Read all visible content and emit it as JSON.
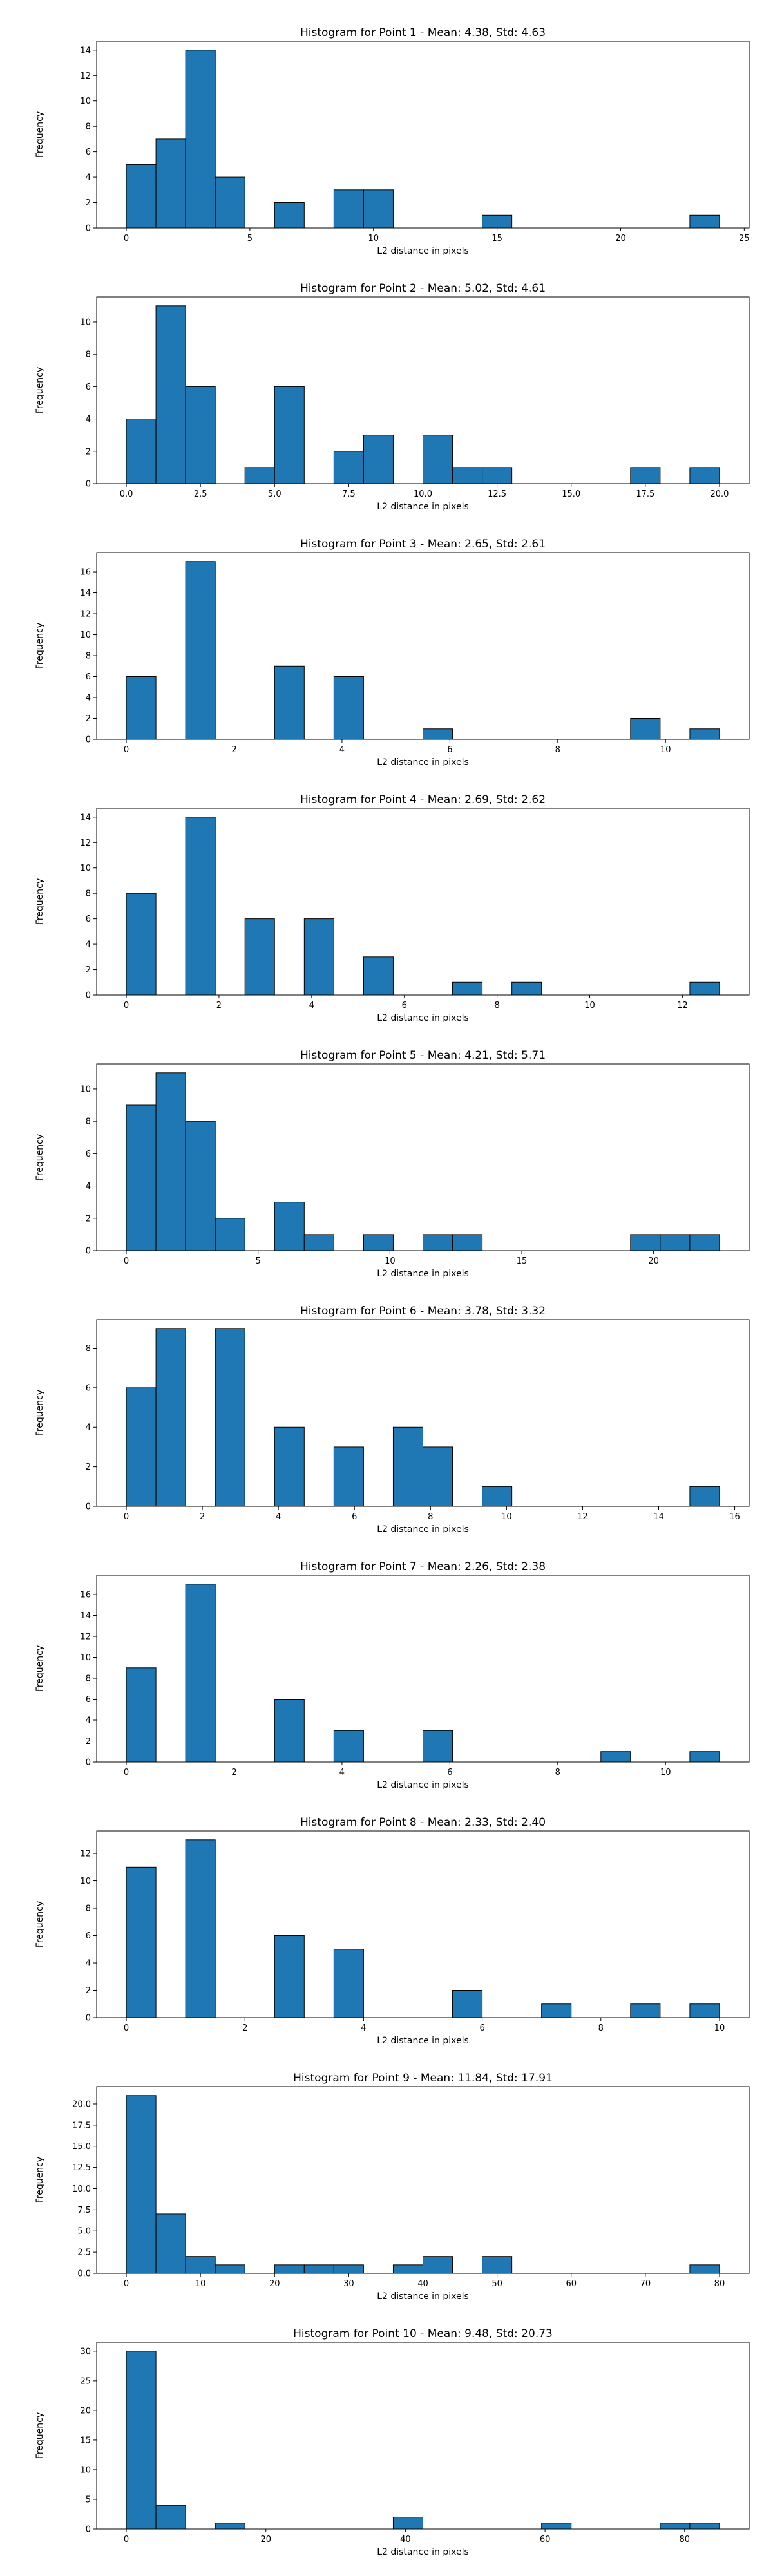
{
  "bar_color": "#1f77b4",
  "edge_color": "#000000",
  "chart_data": [
    {
      "type": "bar",
      "title": "Histogram for Point 1 - Mean: 4.38, Std: 4.63",
      "xlabel": "L2 distance in pixels",
      "ylabel": "Frequency",
      "xlim": [
        -1.2,
        25.2
      ],
      "ylim": [
        0,
        14.7
      ],
      "xticks": [
        0,
        5,
        10,
        15,
        20,
        25
      ],
      "xtick_labels": [
        "0",
        "5",
        "10",
        "15",
        "20",
        "25"
      ],
      "yticks": [
        0,
        2,
        4,
        6,
        8,
        10,
        12,
        14
      ],
      "ytick_labels": [
        "0",
        "2",
        "4",
        "6",
        "8",
        "10",
        "12",
        "14"
      ],
      "grid": false,
      "bins": [
        {
          "x0": 0.0,
          "x1": 1.2,
          "value": 5
        },
        {
          "x0": 1.2,
          "x1": 2.4,
          "value": 7
        },
        {
          "x0": 2.4,
          "x1": 3.6,
          "value": 14
        },
        {
          "x0": 3.6,
          "x1": 4.8,
          "value": 4
        },
        {
          "x0": 6.0,
          "x1": 7.2,
          "value": 2
        },
        {
          "x0": 8.4,
          "x1": 9.6,
          "value": 3
        },
        {
          "x0": 9.6,
          "x1": 10.8,
          "value": 3
        },
        {
          "x0": 14.4,
          "x1": 15.6,
          "value": 1
        },
        {
          "x0": 22.8,
          "x1": 24.0,
          "value": 1
        }
      ]
    },
    {
      "type": "bar",
      "title": "Histogram for Point 2 - Mean: 5.02, Std: 4.61",
      "xlabel": "L2 distance in pixels",
      "ylabel": "Frequency",
      "xlim": [
        -1.0,
        21.0
      ],
      "ylim": [
        0,
        11.55
      ],
      "xticks": [
        0,
        2.5,
        5,
        7.5,
        10,
        12.5,
        15,
        17.5,
        20
      ],
      "xtick_labels": [
        "0.0",
        "2.5",
        "5.0",
        "7.5",
        "10.0",
        "12.5",
        "15.0",
        "17.5",
        "20.0"
      ],
      "yticks": [
        0,
        2,
        4,
        6,
        8,
        10
      ],
      "ytick_labels": [
        "0",
        "2",
        "4",
        "6",
        "8",
        "10"
      ],
      "grid": false,
      "bins": [
        {
          "x0": 0.0,
          "x1": 1.0,
          "value": 4
        },
        {
          "x0": 1.0,
          "x1": 2.0,
          "value": 11
        },
        {
          "x0": 2.0,
          "x1": 3.0,
          "value": 6
        },
        {
          "x0": 4.0,
          "x1": 5.0,
          "value": 1
        },
        {
          "x0": 5.0,
          "x1": 6.0,
          "value": 6
        },
        {
          "x0": 7.0,
          "x1": 8.0,
          "value": 2
        },
        {
          "x0": 8.0,
          "x1": 9.0,
          "value": 3
        },
        {
          "x0": 10.0,
          "x1": 11.0,
          "value": 3
        },
        {
          "x0": 11.0,
          "x1": 12.0,
          "value": 1
        },
        {
          "x0": 12.0,
          "x1": 13.0,
          "value": 1
        },
        {
          "x0": 17.0,
          "x1": 18.0,
          "value": 1
        },
        {
          "x0": 19.0,
          "x1": 20.0,
          "value": 1
        }
      ]
    },
    {
      "type": "bar",
      "title": "Histogram for Point 3 - Mean: 2.65, Std: 2.61",
      "xlabel": "L2 distance in pixels",
      "ylabel": "Frequency",
      "xlim": [
        -0.55,
        11.55
      ],
      "ylim": [
        0,
        17.85
      ],
      "xticks": [
        0,
        2,
        4,
        6,
        8,
        10
      ],
      "xtick_labels": [
        "0",
        "2",
        "4",
        "6",
        "8",
        "10"
      ],
      "yticks": [
        0,
        2,
        4,
        6,
        8,
        10,
        12,
        14,
        16
      ],
      "ytick_labels": [
        "0",
        "2",
        "4",
        "6",
        "8",
        "10",
        "12",
        "14",
        "16"
      ],
      "grid": false,
      "bins": [
        {
          "x0": 0.0,
          "x1": 0.55,
          "value": 6
        },
        {
          "x0": 1.1,
          "x1": 1.65,
          "value": 17
        },
        {
          "x0": 2.75,
          "x1": 3.3,
          "value": 7
        },
        {
          "x0": 3.85,
          "x1": 4.4,
          "value": 6
        },
        {
          "x0": 5.5,
          "x1": 6.05,
          "value": 1
        },
        {
          "x0": 9.35,
          "x1": 9.9,
          "value": 2
        },
        {
          "x0": 10.45,
          "x1": 11.0,
          "value": 1
        }
      ]
    },
    {
      "type": "bar",
      "title": "Histogram for Point 4 - Mean: 2.69, Std: 2.62",
      "xlabel": "L2 distance in pixels",
      "ylabel": "Frequency",
      "xlim": [
        -0.64,
        13.44
      ],
      "ylim": [
        0,
        14.7
      ],
      "xticks": [
        0,
        2,
        4,
        6,
        8,
        10,
        12
      ],
      "xtick_labels": [
        "0",
        "2",
        "4",
        "6",
        "8",
        "10",
        "12"
      ],
      "yticks": [
        0,
        2,
        4,
        6,
        8,
        10,
        12,
        14
      ],
      "ytick_labels": [
        "0",
        "2",
        "4",
        "6",
        "8",
        "10",
        "12",
        "14"
      ],
      "grid": false,
      "bins": [
        {
          "x0": 0.0,
          "x1": 0.64,
          "value": 8
        },
        {
          "x0": 1.28,
          "x1": 1.92,
          "value": 14
        },
        {
          "x0": 2.56,
          "x1": 3.2,
          "value": 6
        },
        {
          "x0": 3.84,
          "x1": 4.48,
          "value": 6
        },
        {
          "x0": 5.12,
          "x1": 5.76,
          "value": 3
        },
        {
          "x0": 7.04,
          "x1": 7.68,
          "value": 1
        },
        {
          "x0": 8.32,
          "x1": 8.96,
          "value": 1
        },
        {
          "x0": 12.16,
          "x1": 12.8,
          "value": 1
        }
      ]
    },
    {
      "type": "bar",
      "title": "Histogram for Point 5 - Mean: 4.21, Std: 5.71",
      "xlabel": "L2 distance in pixels",
      "ylabel": "Frequency",
      "xlim": [
        -1.125,
        23.625
      ],
      "ylim": [
        0,
        11.55
      ],
      "xticks": [
        0,
        5,
        10,
        15,
        20
      ],
      "xtick_labels": [
        "0",
        "5",
        "10",
        "15",
        "20"
      ],
      "yticks": [
        0,
        2,
        4,
        6,
        8,
        10
      ],
      "ytick_labels": [
        "0",
        "2",
        "4",
        "6",
        "8",
        "10"
      ],
      "grid": false,
      "bins": [
        {
          "x0": 0.0,
          "x1": 1.125,
          "value": 9
        },
        {
          "x0": 1.125,
          "x1": 2.25,
          "value": 11
        },
        {
          "x0": 2.25,
          "x1": 3.375,
          "value": 8
        },
        {
          "x0": 3.375,
          "x1": 4.5,
          "value": 2
        },
        {
          "x0": 5.625,
          "x1": 6.75,
          "value": 3
        },
        {
          "x0": 6.75,
          "x1": 7.875,
          "value": 1
        },
        {
          "x0": 9.0,
          "x1": 10.125,
          "value": 1
        },
        {
          "x0": 11.25,
          "x1": 12.375,
          "value": 1
        },
        {
          "x0": 12.375,
          "x1": 13.5,
          "value": 1
        },
        {
          "x0": 19.125,
          "x1": 20.25,
          "value": 1
        },
        {
          "x0": 20.25,
          "x1": 21.375,
          "value": 1
        },
        {
          "x0": 21.375,
          "x1": 22.5,
          "value": 1
        }
      ]
    },
    {
      "type": "bar",
      "title": "Histogram for Point 6 - Mean: 3.78, Std: 3.32",
      "xlabel": "L2 distance in pixels",
      "ylabel": "Frequency",
      "xlim": [
        -0.78,
        16.38
      ],
      "ylim": [
        0,
        9.45
      ],
      "xticks": [
        0,
        2,
        4,
        6,
        8,
        10,
        12,
        14,
        16
      ],
      "xtick_labels": [
        "0",
        "2",
        "4",
        "6",
        "8",
        "10",
        "12",
        "14",
        "16"
      ],
      "yticks": [
        0,
        2,
        4,
        6,
        8
      ],
      "ytick_labels": [
        "0",
        "2",
        "4",
        "6",
        "8"
      ],
      "grid": false,
      "bins": [
        {
          "x0": 0.0,
          "x1": 0.78,
          "value": 6
        },
        {
          "x0": 0.78,
          "x1": 1.56,
          "value": 9
        },
        {
          "x0": 2.34,
          "x1": 3.12,
          "value": 9
        },
        {
          "x0": 3.9,
          "x1": 4.68,
          "value": 4
        },
        {
          "x0": 5.46,
          "x1": 6.24,
          "value": 3
        },
        {
          "x0": 7.02,
          "x1": 7.8,
          "value": 4
        },
        {
          "x0": 7.8,
          "x1": 8.58,
          "value": 3
        },
        {
          "x0": 9.36,
          "x1": 10.14,
          "value": 1
        },
        {
          "x0": 14.82,
          "x1": 15.6,
          "value": 1
        }
      ]
    },
    {
      "type": "bar",
      "title": "Histogram for Point 7 - Mean: 2.26, Std: 2.38",
      "xlabel": "L2 distance in pixels",
      "ylabel": "Frequency",
      "xlim": [
        -0.55,
        11.55
      ],
      "ylim": [
        0,
        17.85
      ],
      "xticks": [
        0,
        2,
        4,
        6,
        8,
        10
      ],
      "xtick_labels": [
        "0",
        "2",
        "4",
        "6",
        "8",
        "10"
      ],
      "yticks": [
        0,
        2,
        4,
        6,
        8,
        10,
        12,
        14,
        16
      ],
      "ytick_labels": [
        "0",
        "2",
        "4",
        "6",
        "8",
        "10",
        "12",
        "14",
        "16"
      ],
      "grid": false,
      "bins": [
        {
          "x0": 0.0,
          "x1": 0.55,
          "value": 9
        },
        {
          "x0": 1.1,
          "x1": 1.65,
          "value": 17
        },
        {
          "x0": 2.75,
          "x1": 3.3,
          "value": 6
        },
        {
          "x0": 3.85,
          "x1": 4.4,
          "value": 3
        },
        {
          "x0": 5.5,
          "x1": 6.05,
          "value": 3
        },
        {
          "x0": 8.8,
          "x1": 9.35,
          "value": 1
        },
        {
          "x0": 10.45,
          "x1": 11.0,
          "value": 1
        }
      ]
    },
    {
      "type": "bar",
      "title": "Histogram for Point 8 - Mean: 2.33, Std: 2.40",
      "xlabel": "L2 distance in pixels",
      "ylabel": "Frequency",
      "xlim": [
        -0.5,
        10.5
      ],
      "ylim": [
        0,
        13.65
      ],
      "xticks": [
        0,
        2,
        4,
        6,
        8,
        10
      ],
      "xtick_labels": [
        "0",
        "2",
        "4",
        "6",
        "8",
        "10"
      ],
      "yticks": [
        0,
        2,
        4,
        6,
        8,
        10,
        12
      ],
      "ytick_labels": [
        "0",
        "2",
        "4",
        "6",
        "8",
        "10",
        "12"
      ],
      "grid": false,
      "bins": [
        {
          "x0": 0.0,
          "x1": 0.5,
          "value": 11
        },
        {
          "x0": 1.0,
          "x1": 1.5,
          "value": 13
        },
        {
          "x0": 2.5,
          "x1": 3.0,
          "value": 6
        },
        {
          "x0": 3.5,
          "x1": 4.0,
          "value": 5
        },
        {
          "x0": 5.5,
          "x1": 6.0,
          "value": 2
        },
        {
          "x0": 7.0,
          "x1": 7.5,
          "value": 1
        },
        {
          "x0": 8.5,
          "x1": 9.0,
          "value": 1
        },
        {
          "x0": 9.5,
          "x1": 10.0,
          "value": 1
        }
      ]
    },
    {
      "type": "bar",
      "title": "Histogram for Point 9 - Mean: 11.84, Std: 17.91",
      "xlabel": "L2 distance in pixels",
      "ylabel": "Frequency",
      "xlim": [
        -4.0,
        84.0
      ],
      "ylim": [
        0,
        22.05
      ],
      "xticks": [
        0,
        10,
        20,
        30,
        40,
        50,
        60,
        70,
        80
      ],
      "xtick_labels": [
        "0",
        "10",
        "20",
        "30",
        "40",
        "50",
        "60",
        "70",
        "80"
      ],
      "yticks": [
        0,
        2.5,
        5,
        7.5,
        10,
        12.5,
        15,
        17.5,
        20
      ],
      "ytick_labels": [
        "0.0",
        "2.5",
        "5.0",
        "7.5",
        "10.0",
        "12.5",
        "15.0",
        "17.5",
        "20.0"
      ],
      "grid": false,
      "bins": [
        {
          "x0": 0.0,
          "x1": 4.0,
          "value": 21
        },
        {
          "x0": 4.0,
          "x1": 8.0,
          "value": 7
        },
        {
          "x0": 8.0,
          "x1": 12.0,
          "value": 2
        },
        {
          "x0": 12.0,
          "x1": 16.0,
          "value": 1
        },
        {
          "x0": 20.0,
          "x1": 24.0,
          "value": 1
        },
        {
          "x0": 24.0,
          "x1": 28.0,
          "value": 1
        },
        {
          "x0": 28.0,
          "x1": 32.0,
          "value": 1
        },
        {
          "x0": 36.0,
          "x1": 40.0,
          "value": 1
        },
        {
          "x0": 40.0,
          "x1": 44.0,
          "value": 2
        },
        {
          "x0": 48.0,
          "x1": 52.0,
          "value": 2
        },
        {
          "x0": 76.0,
          "x1": 80.0,
          "value": 1
        }
      ]
    },
    {
      "type": "bar",
      "title": "Histogram for Point 10 - Mean: 9.48, Std: 20.73",
      "xlabel": "L2 distance in pixels",
      "ylabel": "Frequency",
      "xlim": [
        -4.25,
        89.25
      ],
      "ylim": [
        0,
        31.5
      ],
      "xticks": [
        0,
        20,
        40,
        60,
        80
      ],
      "xtick_labels": [
        "0",
        "20",
        "40",
        "60",
        "80"
      ],
      "yticks": [
        0,
        5,
        10,
        15,
        20,
        25,
        30
      ],
      "ytick_labels": [
        "0",
        "5",
        "10",
        "15",
        "20",
        "25",
        "30"
      ],
      "grid": false,
      "bins": [
        {
          "x0": 0.0,
          "x1": 4.25,
          "value": 30
        },
        {
          "x0": 4.25,
          "x1": 8.5,
          "value": 4
        },
        {
          "x0": 12.75,
          "x1": 17.0,
          "value": 1
        },
        {
          "x0": 38.25,
          "x1": 42.5,
          "value": 2
        },
        {
          "x0": 59.5,
          "x1": 63.75,
          "value": 1
        },
        {
          "x0": 76.5,
          "x1": 80.75,
          "value": 1
        },
        {
          "x0": 80.75,
          "x1": 85.0,
          "value": 1
        }
      ]
    }
  ]
}
